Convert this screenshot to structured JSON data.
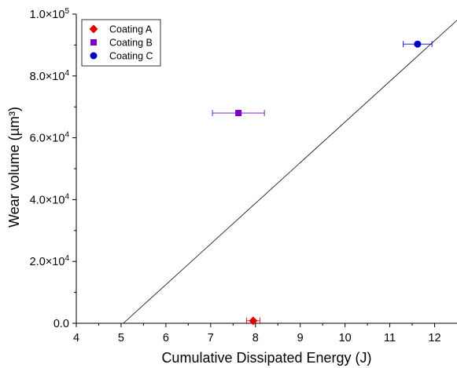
{
  "chart_data": {
    "type": "scatter",
    "xlabel": "Cumulative Dissipated Energy (J)",
    "ylabel": "Wear volume (µm³)",
    "xlim": [
      4,
      12.5
    ],
    "ylim": [
      0,
      100000
    ],
    "x_ticks": [
      4,
      5,
      6,
      7,
      8,
      9,
      10,
      11,
      12
    ],
    "x_tick_labels": [
      "4",
      "5",
      "6",
      "7",
      "8",
      "9",
      "10",
      "11",
      "12"
    ],
    "y_ticks": [
      0,
      20000,
      40000,
      60000,
      80000,
      100000
    ],
    "y_tick_labels": [
      {
        "mantissa": "0.0",
        "exponent": ""
      },
      {
        "mantissa": "2.0×10",
        "exponent": "4"
      },
      {
        "mantissa": "4.0×10",
        "exponent": "4"
      },
      {
        "mantissa": "6.0×10",
        "exponent": "4"
      },
      {
        "mantissa": "8.0×10",
        "exponent": "4"
      },
      {
        "mantissa": "1.0×10",
        "exponent": "5"
      }
    ],
    "grid": false,
    "legend_position": "top-left",
    "series": [
      {
        "name": "Coating A",
        "x": 7.95,
        "y": 800,
        "x_err": 0.15,
        "color": "#e00000",
        "marker": "diamond"
      },
      {
        "name": "Coating B",
        "x": 7.62,
        "y": 68000,
        "x_err": 0.58,
        "color": "#7a00c8",
        "marker": "square"
      },
      {
        "name": "Coating C",
        "x": 11.62,
        "y": 90300,
        "x_err": 0.32,
        "color": "#0000c0",
        "marker": "circle"
      }
    ],
    "fit_line": {
      "points": [
        [
          5.05,
          0
        ],
        [
          12.5,
          98000
        ]
      ],
      "color": "#000000"
    }
  }
}
